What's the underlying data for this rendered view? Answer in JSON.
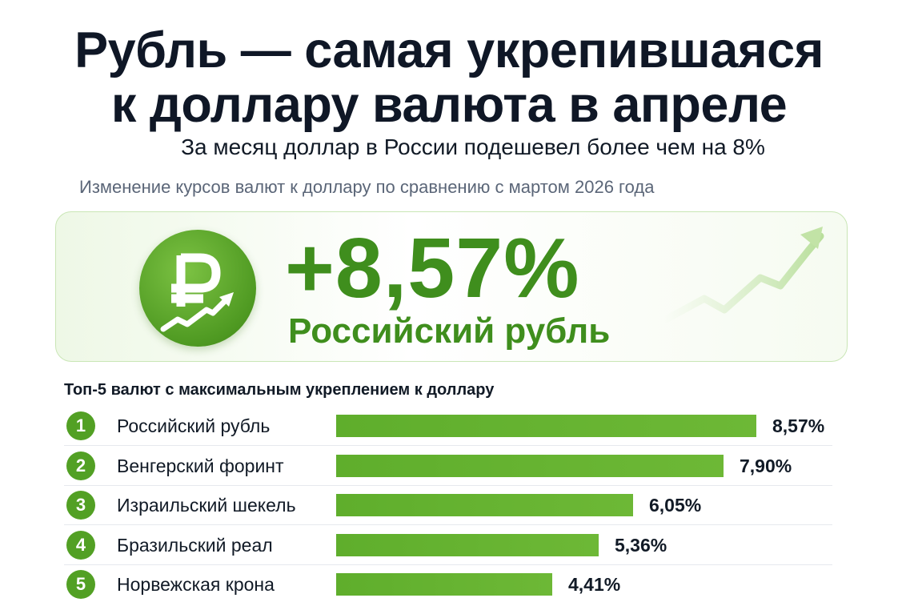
{
  "title_line1": "Рубль — самая укрепившаяся",
  "title_line2": "к доллару валюта в апреле",
  "subtitle": "За месяц доллар в России подешевел более чем на 8%",
  "note": "Изменение курсов валют к доллару по сравнению с мартом 2026 года",
  "hero": {
    "value": "+8,57%",
    "label": "Российский рубль",
    "icon": "ruble-coin-icon"
  },
  "accent_color": "#52a024",
  "chart_data": {
    "type": "bar",
    "title": "Топ-5 валют с максимальным укреплением к доллару",
    "orientation": "horizontal",
    "categories": [
      "Российский рубль",
      "Венгерский форинт",
      "Израильский шекель",
      "Бразильский реал",
      "Норвежская крона"
    ],
    "ranks": [
      "1",
      "2",
      "3",
      "4",
      "5"
    ],
    "values": [
      8.57,
      7.9,
      6.05,
      5.36,
      4.41
    ],
    "value_labels": [
      "8,57%",
      "7,90%",
      "6,05%",
      "5,36%",
      "4,41%"
    ],
    "unit": "%",
    "grid": false,
    "bar_color": "#5fae2c"
  }
}
